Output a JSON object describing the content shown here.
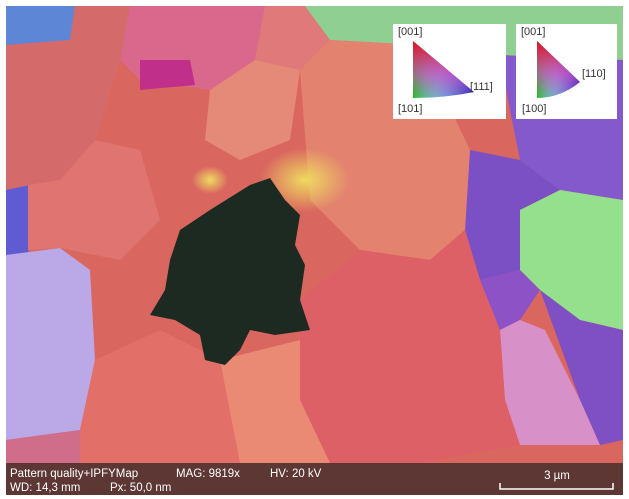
{
  "legends": [
    {
      "top": "[001]",
      "left": "[101]",
      "right": "[111]"
    },
    {
      "top": "[001]",
      "left": "[100]",
      "right": "[110]"
    }
  ],
  "info": {
    "line1": [
      "Pattern quality+IPFYMap",
      "MAG: 9819x",
      "HV: 20 kV"
    ],
    "line2": [
      "WD: 14,3 mm",
      "Px: 50,0 nm"
    ]
  },
  "scale_bar": {
    "label": "3 µm"
  }
}
